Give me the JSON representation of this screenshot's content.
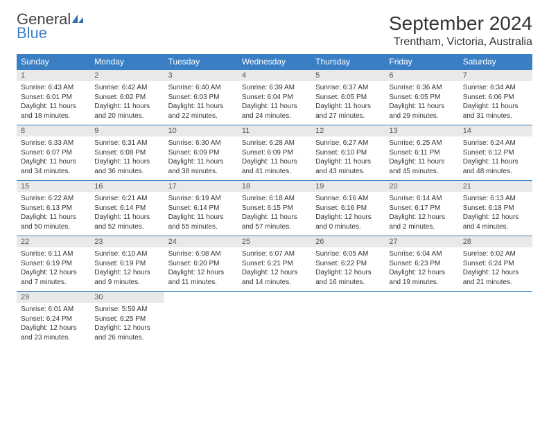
{
  "logo": {
    "text1": "General",
    "text2": "Blue"
  },
  "title": "September 2024",
  "location": "Trentham, Victoria, Australia",
  "colors": {
    "header_bg": "#3a7fc4",
    "daynum_bg": "#e9e9e9",
    "border": "#3a7fc4"
  },
  "day_headers": [
    "Sunday",
    "Monday",
    "Tuesday",
    "Wednesday",
    "Thursday",
    "Friday",
    "Saturday"
  ],
  "weeks": [
    [
      {
        "n": "1",
        "sr": "Sunrise: 6:43 AM",
        "ss": "Sunset: 6:01 PM",
        "dl": "Daylight: 11 hours and 18 minutes."
      },
      {
        "n": "2",
        "sr": "Sunrise: 6:42 AM",
        "ss": "Sunset: 6:02 PM",
        "dl": "Daylight: 11 hours and 20 minutes."
      },
      {
        "n": "3",
        "sr": "Sunrise: 6:40 AM",
        "ss": "Sunset: 6:03 PM",
        "dl": "Daylight: 11 hours and 22 minutes."
      },
      {
        "n": "4",
        "sr": "Sunrise: 6:39 AM",
        "ss": "Sunset: 6:04 PM",
        "dl": "Daylight: 11 hours and 24 minutes."
      },
      {
        "n": "5",
        "sr": "Sunrise: 6:37 AM",
        "ss": "Sunset: 6:05 PM",
        "dl": "Daylight: 11 hours and 27 minutes."
      },
      {
        "n": "6",
        "sr": "Sunrise: 6:36 AM",
        "ss": "Sunset: 6:05 PM",
        "dl": "Daylight: 11 hours and 29 minutes."
      },
      {
        "n": "7",
        "sr": "Sunrise: 6:34 AM",
        "ss": "Sunset: 6:06 PM",
        "dl": "Daylight: 11 hours and 31 minutes."
      }
    ],
    [
      {
        "n": "8",
        "sr": "Sunrise: 6:33 AM",
        "ss": "Sunset: 6:07 PM",
        "dl": "Daylight: 11 hours and 34 minutes."
      },
      {
        "n": "9",
        "sr": "Sunrise: 6:31 AM",
        "ss": "Sunset: 6:08 PM",
        "dl": "Daylight: 11 hours and 36 minutes."
      },
      {
        "n": "10",
        "sr": "Sunrise: 6:30 AM",
        "ss": "Sunset: 6:09 PM",
        "dl": "Daylight: 11 hours and 38 minutes."
      },
      {
        "n": "11",
        "sr": "Sunrise: 6:28 AM",
        "ss": "Sunset: 6:09 PM",
        "dl": "Daylight: 11 hours and 41 minutes."
      },
      {
        "n": "12",
        "sr": "Sunrise: 6:27 AM",
        "ss": "Sunset: 6:10 PM",
        "dl": "Daylight: 11 hours and 43 minutes."
      },
      {
        "n": "13",
        "sr": "Sunrise: 6:25 AM",
        "ss": "Sunset: 6:11 PM",
        "dl": "Daylight: 11 hours and 45 minutes."
      },
      {
        "n": "14",
        "sr": "Sunrise: 6:24 AM",
        "ss": "Sunset: 6:12 PM",
        "dl": "Daylight: 11 hours and 48 minutes."
      }
    ],
    [
      {
        "n": "15",
        "sr": "Sunrise: 6:22 AM",
        "ss": "Sunset: 6:13 PM",
        "dl": "Daylight: 11 hours and 50 minutes."
      },
      {
        "n": "16",
        "sr": "Sunrise: 6:21 AM",
        "ss": "Sunset: 6:14 PM",
        "dl": "Daylight: 11 hours and 52 minutes."
      },
      {
        "n": "17",
        "sr": "Sunrise: 6:19 AM",
        "ss": "Sunset: 6:14 PM",
        "dl": "Daylight: 11 hours and 55 minutes."
      },
      {
        "n": "18",
        "sr": "Sunrise: 6:18 AM",
        "ss": "Sunset: 6:15 PM",
        "dl": "Daylight: 11 hours and 57 minutes."
      },
      {
        "n": "19",
        "sr": "Sunrise: 6:16 AM",
        "ss": "Sunset: 6:16 PM",
        "dl": "Daylight: 12 hours and 0 minutes."
      },
      {
        "n": "20",
        "sr": "Sunrise: 6:14 AM",
        "ss": "Sunset: 6:17 PM",
        "dl": "Daylight: 12 hours and 2 minutes."
      },
      {
        "n": "21",
        "sr": "Sunrise: 6:13 AM",
        "ss": "Sunset: 6:18 PM",
        "dl": "Daylight: 12 hours and 4 minutes."
      }
    ],
    [
      {
        "n": "22",
        "sr": "Sunrise: 6:11 AM",
        "ss": "Sunset: 6:19 PM",
        "dl": "Daylight: 12 hours and 7 minutes."
      },
      {
        "n": "23",
        "sr": "Sunrise: 6:10 AM",
        "ss": "Sunset: 6:19 PM",
        "dl": "Daylight: 12 hours and 9 minutes."
      },
      {
        "n": "24",
        "sr": "Sunrise: 6:08 AM",
        "ss": "Sunset: 6:20 PM",
        "dl": "Daylight: 12 hours and 11 minutes."
      },
      {
        "n": "25",
        "sr": "Sunrise: 6:07 AM",
        "ss": "Sunset: 6:21 PM",
        "dl": "Daylight: 12 hours and 14 minutes."
      },
      {
        "n": "26",
        "sr": "Sunrise: 6:05 AM",
        "ss": "Sunset: 6:22 PM",
        "dl": "Daylight: 12 hours and 16 minutes."
      },
      {
        "n": "27",
        "sr": "Sunrise: 6:04 AM",
        "ss": "Sunset: 6:23 PM",
        "dl": "Daylight: 12 hours and 19 minutes."
      },
      {
        "n": "28",
        "sr": "Sunrise: 6:02 AM",
        "ss": "Sunset: 6:24 PM",
        "dl": "Daylight: 12 hours and 21 minutes."
      }
    ],
    [
      {
        "n": "29",
        "sr": "Sunrise: 6:01 AM",
        "ss": "Sunset: 6:24 PM",
        "dl": "Daylight: 12 hours and 23 minutes."
      },
      {
        "n": "30",
        "sr": "Sunrise: 5:59 AM",
        "ss": "Sunset: 6:25 PM",
        "dl": "Daylight: 12 hours and 26 minutes."
      },
      null,
      null,
      null,
      null,
      null
    ]
  ]
}
